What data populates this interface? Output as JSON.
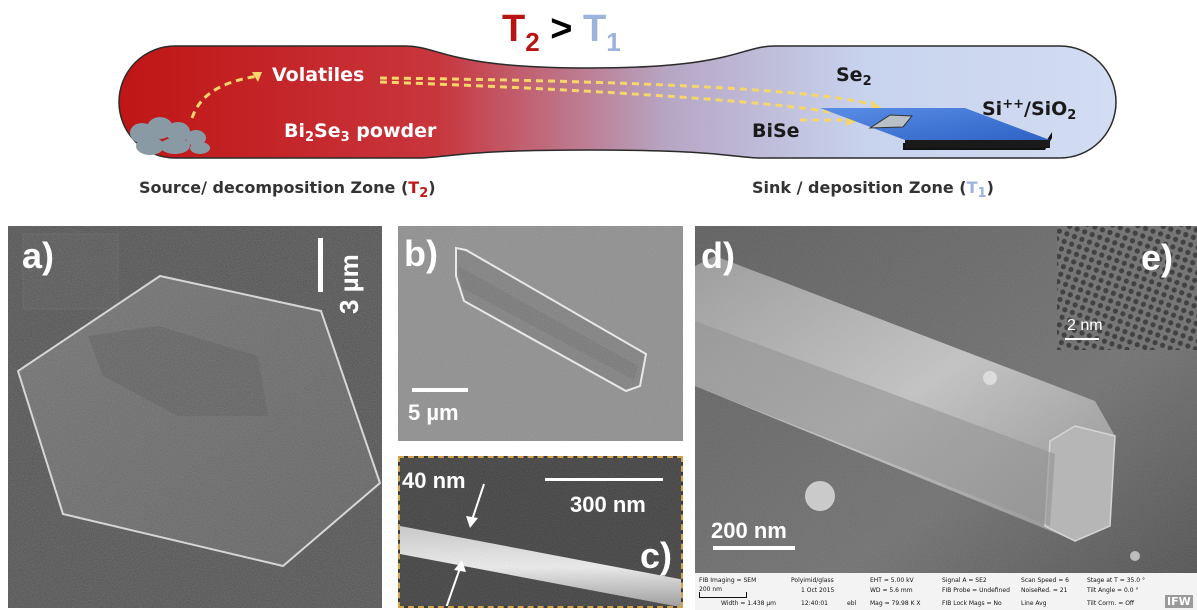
{
  "figure": {
    "title": {
      "t2": "T",
      "t2_sub": "2",
      "gt": " > ",
      "t1": "T",
      "t1_sub": "1"
    },
    "diagram": {
      "volatiles": "Volatiles",
      "powder": {
        "a": "Bi",
        "s1": "2",
        "b": "Se",
        "s2": "3",
        "c": " powder"
      },
      "se2": {
        "a": "Se",
        "s": "2"
      },
      "bise": "BiSe",
      "substrate": {
        "a": "Si",
        "sup": "++",
        "b": "/SiO",
        "s": "2"
      },
      "source_zone": {
        "a": "Source/ decomposition Zone (",
        "t": "T",
        "s": "2",
        "b": ")"
      },
      "sink_zone": {
        "a": "Sink / deposition Zone (",
        "t": "T",
        "s": "1",
        "b": ")"
      }
    },
    "colors": {
      "hot": "#c01818",
      "cold": "#a8bce0",
      "arrow": "#f5d66a",
      "substrate": "#3b73d4"
    },
    "panels": {
      "a": {
        "label": "a)",
        "scale": "3 µm"
      },
      "b": {
        "label": "b)",
        "scale": "5 µm"
      },
      "c": {
        "label": "c)",
        "scale": "300 nm",
        "width": "40 nm"
      },
      "d": {
        "label": "d)",
        "scale": "200 nm"
      },
      "e": {
        "label": "e)",
        "scale": "2 nm"
      }
    },
    "sem_info": {
      "c1a": "FIB Imaging = SEM",
      "c1b": "200 nm",
      "c1c": "Width = 1.438 µm",
      "c2a": "Polyimid/glass",
      "c2b": "1 Oct 2015",
      "c2c": "12:40:01",
      "c3": "ebl",
      "c4a": "EHT = 5.00 kV",
      "c4b": "WD = 5.6 mm",
      "c4c": "Mag = 79.98 K X",
      "c5a": "Signal A = SE2",
      "c5b": "FIB Probe = Undefined",
      "c5c": "FIB Lock Mags = No",
      "c6a": "Scan Speed = 6",
      "c6b": "NoiseRed. = 21",
      "c6c": "Line Avg",
      "c7a": "Stage at T = 35.0 °",
      "c7b": "Tilt Angle = 0.0 °",
      "c7c": "Tilt Corrn. = Off",
      "logo": "IFW"
    }
  }
}
